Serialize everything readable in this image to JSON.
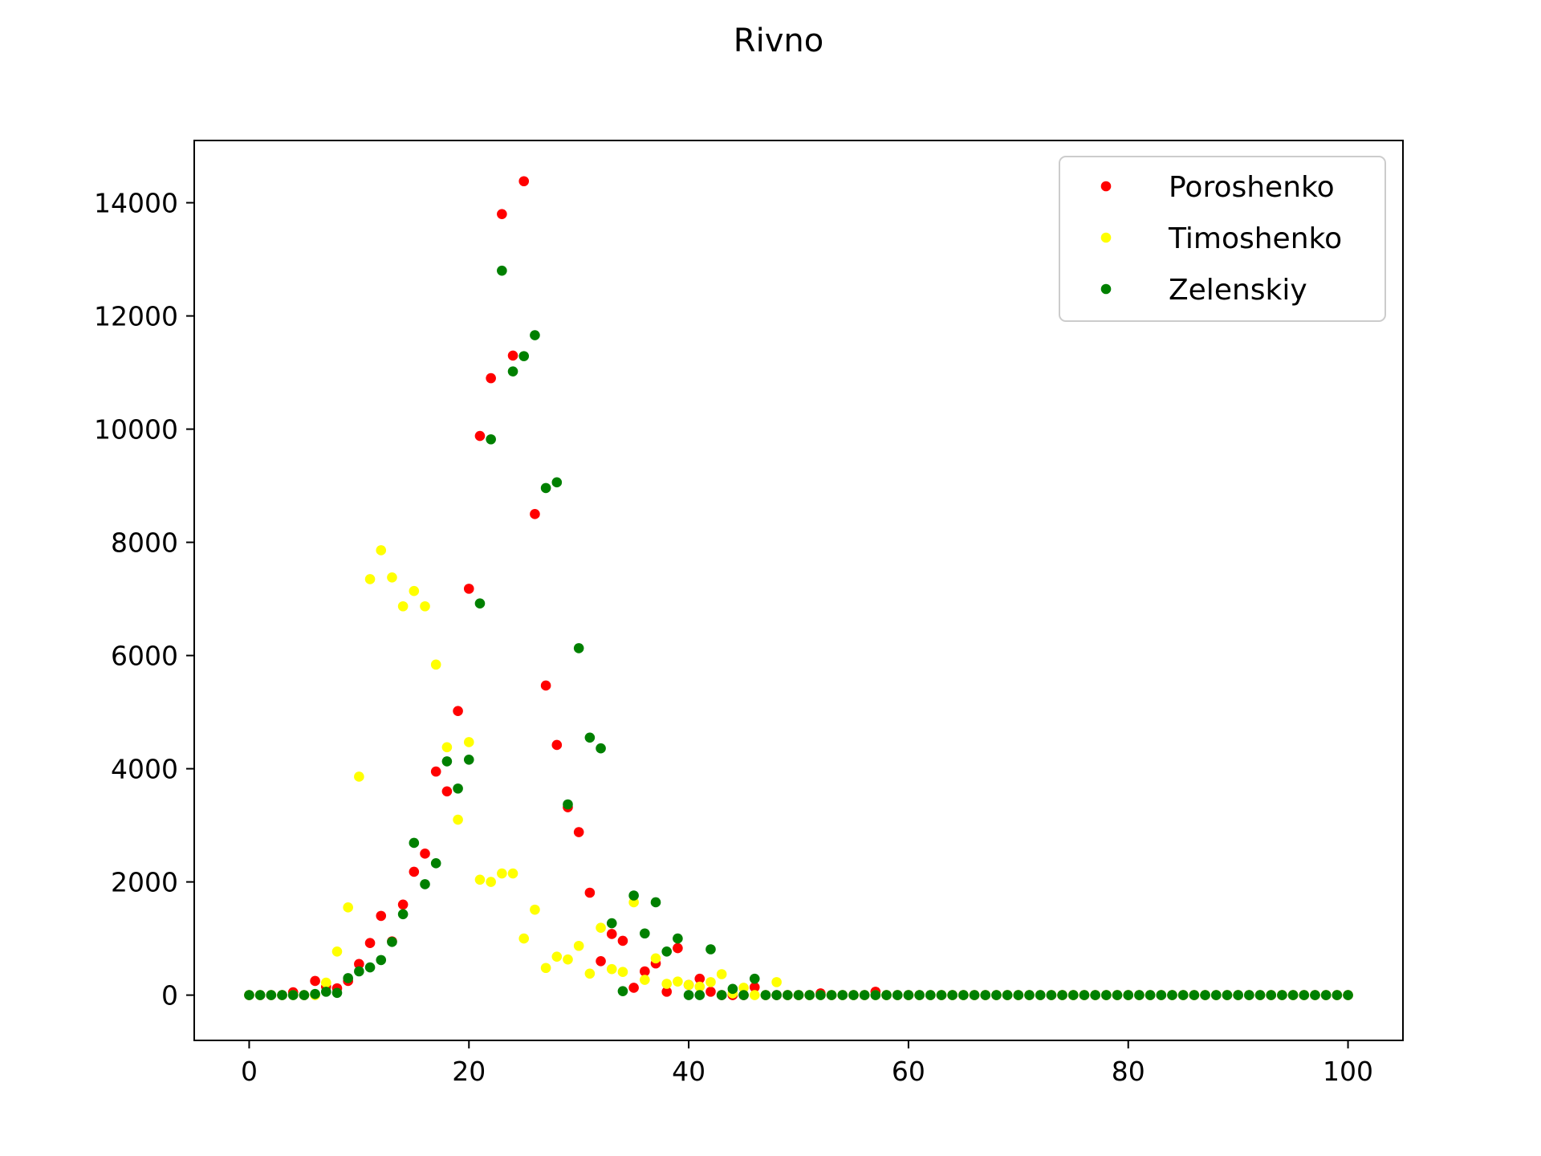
{
  "chart_data": {
    "type": "scatter",
    "title": "Rivno",
    "xlabel": "",
    "ylabel": "",
    "xlim": [
      -5,
      105
    ],
    "ylim": [
      -800,
      15100
    ],
    "x_ticks": [
      0,
      20,
      40,
      60,
      80,
      100
    ],
    "y_ticks": [
      0,
      2000,
      4000,
      6000,
      8000,
      10000,
      12000,
      14000
    ],
    "grid": false,
    "legend_position": "top-right",
    "series": [
      {
        "name": "Poroshenko",
        "color": "#ff0000",
        "points": [
          [
            0,
            0
          ],
          [
            1,
            0
          ],
          [
            2,
            0
          ],
          [
            3,
            0
          ],
          [
            4,
            50
          ],
          [
            5,
            0
          ],
          [
            6,
            250
          ],
          [
            7,
            150
          ],
          [
            8,
            120
          ],
          [
            9,
            250
          ],
          [
            10,
            550
          ],
          [
            11,
            920
          ],
          [
            12,
            1400
          ],
          [
            13,
            950
          ],
          [
            14,
            1600
          ],
          [
            15,
            2180
          ],
          [
            16,
            2500
          ],
          [
            17,
            3950
          ],
          [
            18,
            3600
          ],
          [
            19,
            5020
          ],
          [
            20,
            7180
          ],
          [
            21,
            9880
          ],
          [
            22,
            10900
          ],
          [
            23,
            13800
          ],
          [
            24,
            11300
          ],
          [
            25,
            14380
          ],
          [
            26,
            8500
          ],
          [
            27,
            5470
          ],
          [
            28,
            4420
          ],
          [
            29,
            3320
          ],
          [
            30,
            2880
          ],
          [
            31,
            1810
          ],
          [
            32,
            600
          ],
          [
            33,
            1080
          ],
          [
            34,
            960
          ],
          [
            35,
            130
          ],
          [
            36,
            420
          ],
          [
            37,
            560
          ],
          [
            38,
            60
          ],
          [
            39,
            830
          ],
          [
            40,
            180
          ],
          [
            41,
            290
          ],
          [
            42,
            60
          ],
          [
            43,
            0
          ],
          [
            44,
            0
          ],
          [
            45,
            0
          ],
          [
            46,
            140
          ],
          [
            47,
            0
          ],
          [
            48,
            0
          ],
          [
            49,
            0
          ],
          [
            50,
            0
          ],
          [
            51,
            0
          ],
          [
            52,
            30
          ],
          [
            53,
            0
          ],
          [
            54,
            0
          ],
          [
            55,
            0
          ],
          [
            56,
            0
          ],
          [
            57,
            60
          ],
          [
            58,
            0
          ],
          [
            59,
            0
          ],
          [
            60,
            0
          ],
          [
            61,
            0
          ],
          [
            62,
            0
          ],
          [
            63,
            0
          ],
          [
            64,
            0
          ],
          [
            65,
            0
          ],
          [
            66,
            0
          ],
          [
            67,
            0
          ],
          [
            68,
            0
          ],
          [
            69,
            0
          ],
          [
            70,
            0
          ],
          [
            71,
            0
          ],
          [
            72,
            0
          ],
          [
            73,
            0
          ],
          [
            74,
            0
          ],
          [
            75,
            0
          ],
          [
            76,
            0
          ],
          [
            77,
            0
          ],
          [
            78,
            0
          ],
          [
            79,
            0
          ],
          [
            80,
            0
          ],
          [
            81,
            0
          ],
          [
            82,
            0
          ],
          [
            83,
            0
          ],
          [
            84,
            0
          ],
          [
            85,
            0
          ],
          [
            86,
            0
          ],
          [
            87,
            0
          ],
          [
            88,
            0
          ],
          [
            89,
            0
          ],
          [
            90,
            0
          ],
          [
            91,
            0
          ],
          [
            92,
            0
          ],
          [
            93,
            0
          ],
          [
            94,
            0
          ],
          [
            95,
            0
          ],
          [
            96,
            0
          ],
          [
            97,
            0
          ],
          [
            98,
            0
          ],
          [
            99,
            0
          ],
          [
            100,
            0
          ]
        ]
      },
      {
        "name": "Timoshenko",
        "color": "#ffff00",
        "points": [
          [
            0,
            0
          ],
          [
            1,
            0
          ],
          [
            2,
            0
          ],
          [
            3,
            0
          ],
          [
            4,
            0
          ],
          [
            5,
            0
          ],
          [
            6,
            0
          ],
          [
            7,
            220
          ],
          [
            8,
            770
          ],
          [
            9,
            1550
          ],
          [
            10,
            3860
          ],
          [
            11,
            7350
          ],
          [
            12,
            7860
          ],
          [
            13,
            7380
          ],
          [
            14,
            6870
          ],
          [
            15,
            7140
          ],
          [
            16,
            6870
          ],
          [
            17,
            5840
          ],
          [
            18,
            4380
          ],
          [
            19,
            3100
          ],
          [
            20,
            4470
          ],
          [
            21,
            2040
          ],
          [
            22,
            2000
          ],
          [
            23,
            2150
          ],
          [
            24,
            2150
          ],
          [
            25,
            1000
          ],
          [
            26,
            1510
          ],
          [
            27,
            480
          ],
          [
            28,
            680
          ],
          [
            29,
            630
          ],
          [
            30,
            870
          ],
          [
            31,
            380
          ],
          [
            32,
            1190
          ],
          [
            33,
            460
          ],
          [
            34,
            410
          ],
          [
            35,
            1640
          ],
          [
            36,
            270
          ],
          [
            37,
            650
          ],
          [
            38,
            200
          ],
          [
            39,
            240
          ],
          [
            40,
            180
          ],
          [
            41,
            150
          ],
          [
            42,
            230
          ],
          [
            43,
            370
          ],
          [
            44,
            30
          ],
          [
            45,
            130
          ],
          [
            46,
            0
          ],
          [
            47,
            0
          ],
          [
            48,
            230
          ],
          [
            49,
            0
          ],
          [
            50,
            0
          ],
          [
            51,
            0
          ],
          [
            52,
            0
          ],
          [
            53,
            0
          ],
          [
            54,
            0
          ],
          [
            55,
            0
          ],
          [
            56,
            0
          ],
          [
            57,
            0
          ],
          [
            58,
            0
          ],
          [
            59,
            0
          ],
          [
            60,
            0
          ],
          [
            61,
            0
          ],
          [
            62,
            0
          ],
          [
            63,
            0
          ],
          [
            64,
            0
          ],
          [
            65,
            0
          ],
          [
            66,
            0
          ],
          [
            67,
            0
          ],
          [
            68,
            0
          ],
          [
            69,
            0
          ],
          [
            70,
            0
          ],
          [
            71,
            0
          ],
          [
            72,
            0
          ],
          [
            73,
            0
          ],
          [
            74,
            0
          ],
          [
            75,
            0
          ],
          [
            76,
            0
          ],
          [
            77,
            0
          ],
          [
            78,
            0
          ],
          [
            79,
            0
          ],
          [
            80,
            0
          ],
          [
            81,
            0
          ],
          [
            82,
            0
          ],
          [
            83,
            0
          ],
          [
            84,
            0
          ],
          [
            85,
            0
          ],
          [
            86,
            0
          ],
          [
            87,
            0
          ],
          [
            88,
            0
          ],
          [
            89,
            0
          ],
          [
            90,
            0
          ],
          [
            91,
            0
          ],
          [
            92,
            0
          ],
          [
            93,
            0
          ],
          [
            94,
            0
          ],
          [
            95,
            0
          ],
          [
            96,
            0
          ],
          [
            97,
            0
          ],
          [
            98,
            0
          ],
          [
            99,
            0
          ],
          [
            100,
            0
          ]
        ]
      },
      {
        "name": "Zelenskiy",
        "color": "#008000",
        "points": [
          [
            0,
            0
          ],
          [
            1,
            0
          ],
          [
            2,
            0
          ],
          [
            3,
            0
          ],
          [
            4,
            0
          ],
          [
            5,
            0
          ],
          [
            6,
            20
          ],
          [
            7,
            60
          ],
          [
            8,
            40
          ],
          [
            9,
            300
          ],
          [
            10,
            420
          ],
          [
            11,
            490
          ],
          [
            12,
            620
          ],
          [
            13,
            940
          ],
          [
            14,
            1430
          ],
          [
            15,
            2690
          ],
          [
            16,
            1960
          ],
          [
            17,
            2330
          ],
          [
            18,
            4130
          ],
          [
            19,
            3650
          ],
          [
            20,
            4160
          ],
          [
            21,
            6920
          ],
          [
            22,
            9820
          ],
          [
            23,
            12800
          ],
          [
            24,
            11020
          ],
          [
            25,
            11290
          ],
          [
            26,
            11660
          ],
          [
            27,
            8960
          ],
          [
            28,
            9060
          ],
          [
            29,
            3370
          ],
          [
            30,
            6130
          ],
          [
            31,
            4550
          ],
          [
            32,
            4360
          ],
          [
            33,
            1270
          ],
          [
            34,
            70
          ],
          [
            35,
            1760
          ],
          [
            36,
            1090
          ],
          [
            37,
            1640
          ],
          [
            38,
            770
          ],
          [
            39,
            1000
          ],
          [
            40,
            0
          ],
          [
            41,
            0
          ],
          [
            42,
            810
          ],
          [
            43,
            0
          ],
          [
            44,
            110
          ],
          [
            45,
            0
          ],
          [
            46,
            290
          ],
          [
            47,
            0
          ],
          [
            48,
            0
          ],
          [
            49,
            0
          ],
          [
            50,
            0
          ],
          [
            51,
            0
          ],
          [
            52,
            0
          ],
          [
            53,
            0
          ],
          [
            54,
            0
          ],
          [
            55,
            0
          ],
          [
            56,
            0
          ],
          [
            57,
            0
          ],
          [
            58,
            0
          ],
          [
            59,
            0
          ],
          [
            60,
            0
          ],
          [
            61,
            0
          ],
          [
            62,
            0
          ],
          [
            63,
            0
          ],
          [
            64,
            0
          ],
          [
            65,
            0
          ],
          [
            66,
            0
          ],
          [
            67,
            0
          ],
          [
            68,
            0
          ],
          [
            69,
            0
          ],
          [
            70,
            0
          ],
          [
            71,
            0
          ],
          [
            72,
            0
          ],
          [
            73,
            0
          ],
          [
            74,
            0
          ],
          [
            75,
            0
          ],
          [
            76,
            0
          ],
          [
            77,
            0
          ],
          [
            78,
            0
          ],
          [
            79,
            0
          ],
          [
            80,
            0
          ],
          [
            81,
            0
          ],
          [
            82,
            0
          ],
          [
            83,
            0
          ],
          [
            84,
            0
          ],
          [
            85,
            0
          ],
          [
            86,
            0
          ],
          [
            87,
            0
          ],
          [
            88,
            0
          ],
          [
            89,
            0
          ],
          [
            90,
            0
          ],
          [
            91,
            0
          ],
          [
            92,
            0
          ],
          [
            93,
            0
          ],
          [
            94,
            0
          ],
          [
            95,
            0
          ],
          [
            96,
            0
          ],
          [
            97,
            0
          ],
          [
            98,
            0
          ],
          [
            99,
            0
          ],
          [
            100,
            0
          ]
        ]
      }
    ]
  }
}
